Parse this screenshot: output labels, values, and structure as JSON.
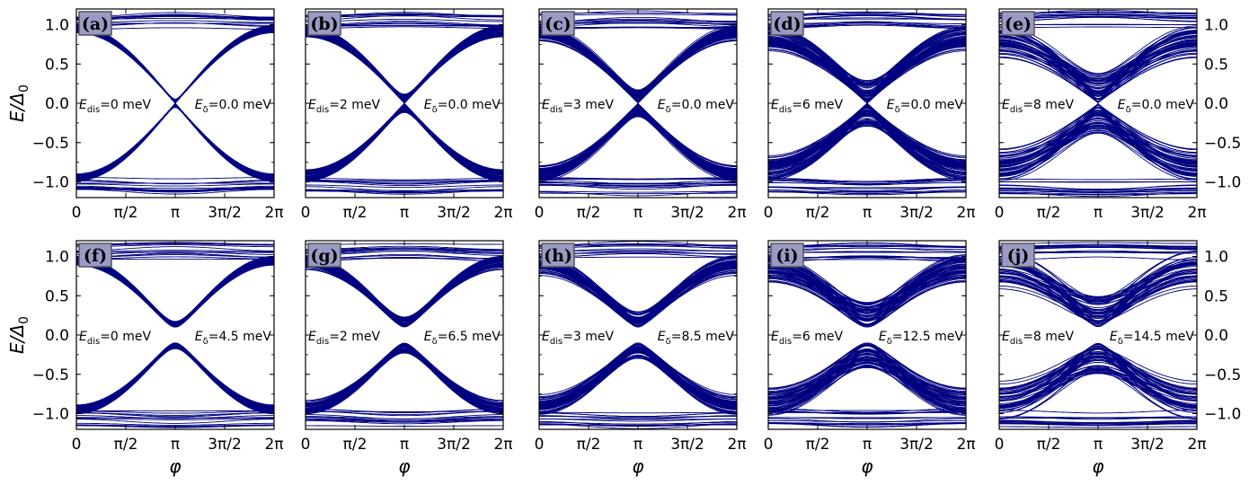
{
  "figure": {
    "ylabel_main": "E/Δ",
    "ylabel_sub": "0",
    "xlabel": "φ",
    "xtick_labels": [
      "0",
      "π/2",
      "π",
      "3π/2",
      "2π"
    ],
    "ytick_labels": [
      "1.0",
      "0.5",
      "0.0",
      "−0.5",
      "−1.0"
    ]
  },
  "chart_data": [
    {
      "panel": "(a)",
      "type": "line",
      "x_range": [
        0,
        6.2832
      ],
      "ylim": [
        -1.2,
        1.2
      ],
      "gap": 0.0,
      "disorder": 0.0,
      "annotations": {
        "dis_label": "E",
        "dis_sub": "dis",
        "dis_value": "=0 meV",
        "delta_label": "E",
        "delta_sub": "δ",
        "delta_value": "=0.0 meV"
      }
    },
    {
      "panel": "(b)",
      "type": "line",
      "x_range": [
        0,
        6.2832
      ],
      "ylim": [
        -1.2,
        1.2
      ],
      "gap": 0.0,
      "disorder": 0.12,
      "annotations": {
        "dis_label": "E",
        "dis_sub": "dis",
        "dis_value": "=2 meV",
        "delta_label": "E",
        "delta_sub": "δ",
        "delta_value": "=0.0 meV"
      }
    },
    {
      "panel": "(c)",
      "type": "line",
      "x_range": [
        0,
        6.2832
      ],
      "ylim": [
        -1.2,
        1.2
      ],
      "gap": 0.0,
      "disorder": 0.22,
      "annotations": {
        "dis_label": "E",
        "dis_sub": "dis",
        "dis_value": "=3 meV",
        "delta_label": "E",
        "delta_sub": "δ",
        "delta_value": "=0.0 meV"
      }
    },
    {
      "panel": "(d)",
      "type": "line",
      "x_range": [
        0,
        6.2832
      ],
      "ylim": [
        -1.2,
        1.2
      ],
      "gap": 0.0,
      "disorder": 0.45,
      "annotations": {
        "dis_label": "E",
        "dis_sub": "dis",
        "dis_value": "=6 meV",
        "delta_label": "E",
        "delta_sub": "δ",
        "delta_value": "=0.0 meV"
      }
    },
    {
      "panel": "(e)",
      "type": "line",
      "x_range": [
        0,
        6.2832
      ],
      "ylim": [
        -1.2,
        1.2
      ],
      "gap": 0.0,
      "disorder": 0.6,
      "annotations": {
        "dis_label": "E",
        "dis_sub": "dis",
        "dis_value": "=8 meV",
        "delta_label": "E",
        "delta_sub": "δ",
        "delta_value": "=0.0 meV"
      }
    },
    {
      "panel": "(f)",
      "type": "line",
      "x_range": [
        0,
        6.2832
      ],
      "ylim": [
        -1.2,
        1.2
      ],
      "gap": 0.1,
      "disorder": 0.05,
      "annotations": {
        "dis_label": "E",
        "dis_sub": "dis",
        "dis_value": "=0 meV",
        "delta_label": "E",
        "delta_sub": "δ",
        "delta_value": "=4.5 meV"
      }
    },
    {
      "panel": "(g)",
      "type": "line",
      "x_range": [
        0,
        6.2832
      ],
      "ylim": [
        -1.2,
        1.2
      ],
      "gap": 0.1,
      "disorder": 0.15,
      "annotations": {
        "dis_label": "E",
        "dis_sub": "dis",
        "dis_value": "=2 meV",
        "delta_label": "E",
        "delta_sub": "δ",
        "delta_value": "=6.5 meV"
      }
    },
    {
      "panel": "(h)",
      "type": "line",
      "x_range": [
        0,
        6.2832
      ],
      "ylim": [
        -1.2,
        1.2
      ],
      "gap": 0.1,
      "disorder": 0.28,
      "annotations": {
        "dis_label": "E",
        "dis_sub": "dis",
        "dis_value": "=3 meV",
        "delta_label": "E",
        "delta_sub": "δ",
        "delta_value": "=8.5 meV"
      }
    },
    {
      "panel": "(i)",
      "type": "line",
      "x_range": [
        0,
        6.2832
      ],
      "ylim": [
        -1.2,
        1.2
      ],
      "gap": 0.1,
      "disorder": 0.5,
      "annotations": {
        "dis_label": "E",
        "dis_sub": "dis",
        "dis_value": "=6 meV",
        "delta_label": "E",
        "delta_sub": "δ",
        "delta_value": "=12.5 meV"
      }
    },
    {
      "panel": "(j)",
      "type": "line",
      "x_range": [
        0,
        6.2832
      ],
      "ylim": [
        -1.2,
        1.2
      ],
      "gap": 0.1,
      "disorder": 0.62,
      "annotations": {
        "dis_label": "E",
        "dis_sub": "dis",
        "dis_value": "=8 meV",
        "delta_label": "E",
        "delta_sub": "δ",
        "delta_value": "=14.5 meV"
      }
    }
  ],
  "style": {
    "line_color": "#000080",
    "tag_bg": "#9a9ac4",
    "tag_border": "#555555"
  }
}
